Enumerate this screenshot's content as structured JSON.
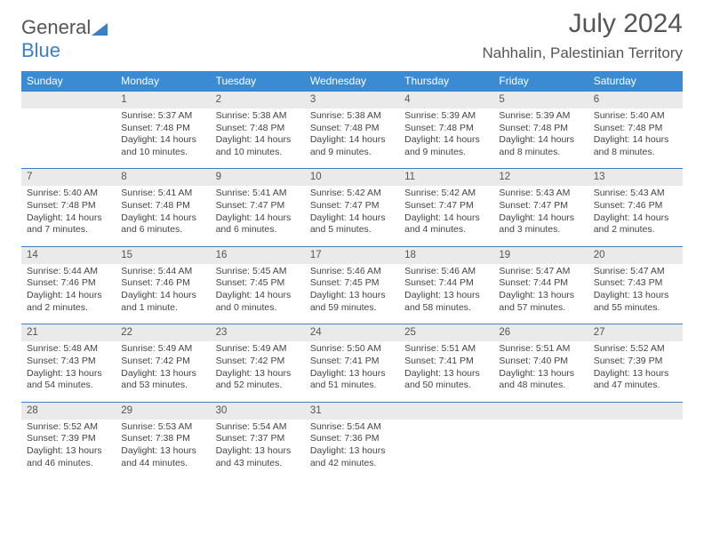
{
  "logo": {
    "text1": "General",
    "text2": "Blue"
  },
  "title": "July 2024",
  "location": "Nahhalin, Palestinian Territory",
  "colors": {
    "header_bg": "#3b8bd4",
    "header_text": "#ffffff",
    "border": "#3b7fc4",
    "daynum_bg": "#eaeaea",
    "text": "#444444"
  },
  "weekdays": [
    "Sunday",
    "Monday",
    "Tuesday",
    "Wednesday",
    "Thursday",
    "Friday",
    "Saturday"
  ],
  "weeks": [
    [
      null,
      {
        "n": "1",
        "sr": "5:37 AM",
        "ss": "7:48 PM",
        "dl": "14 hours and 10 minutes."
      },
      {
        "n": "2",
        "sr": "5:38 AM",
        "ss": "7:48 PM",
        "dl": "14 hours and 10 minutes."
      },
      {
        "n": "3",
        "sr": "5:38 AM",
        "ss": "7:48 PM",
        "dl": "14 hours and 9 minutes."
      },
      {
        "n": "4",
        "sr": "5:39 AM",
        "ss": "7:48 PM",
        "dl": "14 hours and 9 minutes."
      },
      {
        "n": "5",
        "sr": "5:39 AM",
        "ss": "7:48 PM",
        "dl": "14 hours and 8 minutes."
      },
      {
        "n": "6",
        "sr": "5:40 AM",
        "ss": "7:48 PM",
        "dl": "14 hours and 8 minutes."
      }
    ],
    [
      {
        "n": "7",
        "sr": "5:40 AM",
        "ss": "7:48 PM",
        "dl": "14 hours and 7 minutes."
      },
      {
        "n": "8",
        "sr": "5:41 AM",
        "ss": "7:48 PM",
        "dl": "14 hours and 6 minutes."
      },
      {
        "n": "9",
        "sr": "5:41 AM",
        "ss": "7:47 PM",
        "dl": "14 hours and 6 minutes."
      },
      {
        "n": "10",
        "sr": "5:42 AM",
        "ss": "7:47 PM",
        "dl": "14 hours and 5 minutes."
      },
      {
        "n": "11",
        "sr": "5:42 AM",
        "ss": "7:47 PM",
        "dl": "14 hours and 4 minutes."
      },
      {
        "n": "12",
        "sr": "5:43 AM",
        "ss": "7:47 PM",
        "dl": "14 hours and 3 minutes."
      },
      {
        "n": "13",
        "sr": "5:43 AM",
        "ss": "7:46 PM",
        "dl": "14 hours and 2 minutes."
      }
    ],
    [
      {
        "n": "14",
        "sr": "5:44 AM",
        "ss": "7:46 PM",
        "dl": "14 hours and 2 minutes."
      },
      {
        "n": "15",
        "sr": "5:44 AM",
        "ss": "7:46 PM",
        "dl": "14 hours and 1 minute."
      },
      {
        "n": "16",
        "sr": "5:45 AM",
        "ss": "7:45 PM",
        "dl": "14 hours and 0 minutes."
      },
      {
        "n": "17",
        "sr": "5:46 AM",
        "ss": "7:45 PM",
        "dl": "13 hours and 59 minutes."
      },
      {
        "n": "18",
        "sr": "5:46 AM",
        "ss": "7:44 PM",
        "dl": "13 hours and 58 minutes."
      },
      {
        "n": "19",
        "sr": "5:47 AM",
        "ss": "7:44 PM",
        "dl": "13 hours and 57 minutes."
      },
      {
        "n": "20",
        "sr": "5:47 AM",
        "ss": "7:43 PM",
        "dl": "13 hours and 55 minutes."
      }
    ],
    [
      {
        "n": "21",
        "sr": "5:48 AM",
        "ss": "7:43 PM",
        "dl": "13 hours and 54 minutes."
      },
      {
        "n": "22",
        "sr": "5:49 AM",
        "ss": "7:42 PM",
        "dl": "13 hours and 53 minutes."
      },
      {
        "n": "23",
        "sr": "5:49 AM",
        "ss": "7:42 PM",
        "dl": "13 hours and 52 minutes."
      },
      {
        "n": "24",
        "sr": "5:50 AM",
        "ss": "7:41 PM",
        "dl": "13 hours and 51 minutes."
      },
      {
        "n": "25",
        "sr": "5:51 AM",
        "ss": "7:41 PM",
        "dl": "13 hours and 50 minutes."
      },
      {
        "n": "26",
        "sr": "5:51 AM",
        "ss": "7:40 PM",
        "dl": "13 hours and 48 minutes."
      },
      {
        "n": "27",
        "sr": "5:52 AM",
        "ss": "7:39 PM",
        "dl": "13 hours and 47 minutes."
      }
    ],
    [
      {
        "n": "28",
        "sr": "5:52 AM",
        "ss": "7:39 PM",
        "dl": "13 hours and 46 minutes."
      },
      {
        "n": "29",
        "sr": "5:53 AM",
        "ss": "7:38 PM",
        "dl": "13 hours and 44 minutes."
      },
      {
        "n": "30",
        "sr": "5:54 AM",
        "ss": "7:37 PM",
        "dl": "13 hours and 43 minutes."
      },
      {
        "n": "31",
        "sr": "5:54 AM",
        "ss": "7:36 PM",
        "dl": "13 hours and 42 minutes."
      },
      null,
      null,
      null
    ]
  ]
}
